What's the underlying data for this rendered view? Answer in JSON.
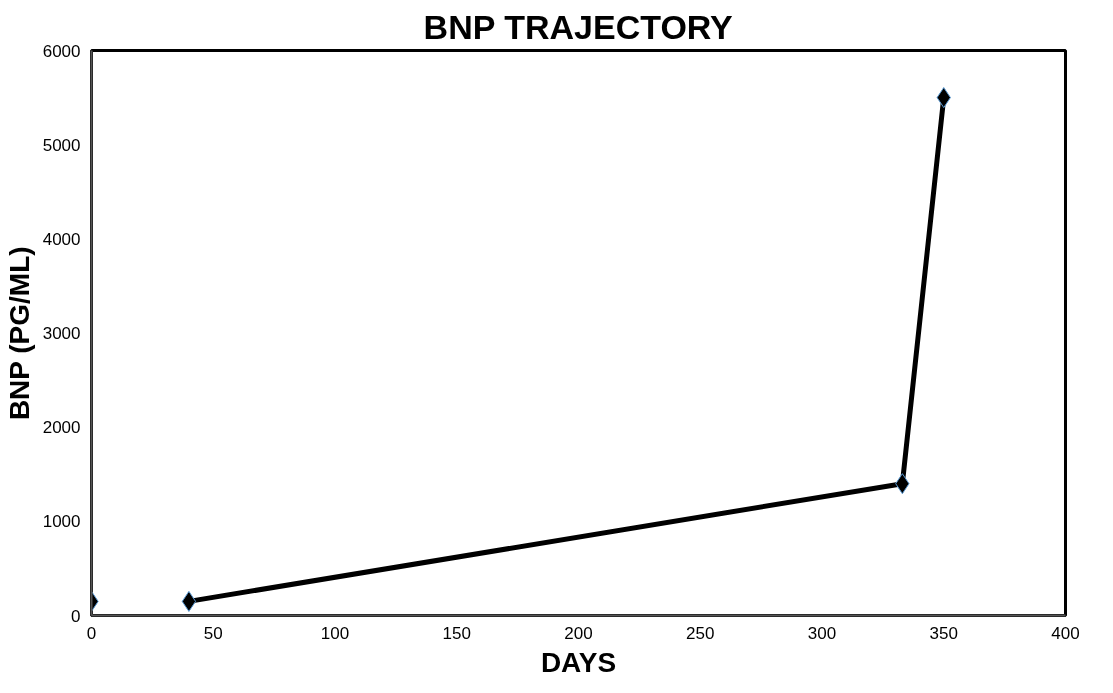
{
  "chart_data": {
    "type": "line",
    "title": "BNP TRAJECTORY",
    "xlabel": "DAYS",
    "ylabel": "BNP (PG/ML)",
    "series": [
      {
        "type": "scatter",
        "color": "#000000",
        "x": [
          0
        ],
        "values": [
          150
        ]
      },
      {
        "color": "#000000",
        "x": [
          40,
          333,
          350
        ],
        "values": [
          150,
          1400,
          5500
        ]
      }
    ],
    "xlim": [
      0,
      400
    ],
    "xticks": [
      0,
      50,
      100,
      150,
      200,
      250,
      300,
      350,
      400
    ],
    "ylim": [
      0,
      6000
    ],
    "yticks": [
      0,
      1000,
      2000,
      3000,
      4000,
      5000,
      6000
    ],
    "grid": false,
    "marker": "diamond"
  }
}
